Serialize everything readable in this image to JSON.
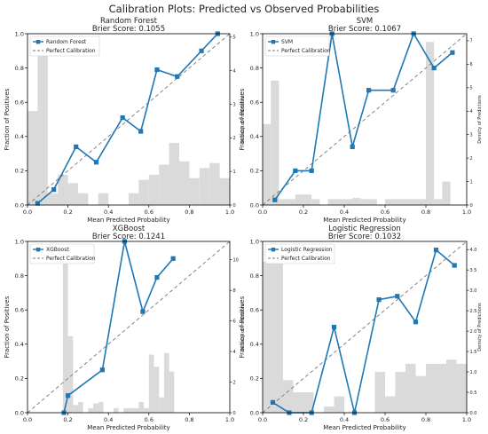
{
  "figure_title": "Calibration Plots: Predicted vs Observed Probabilities",
  "colors": {
    "line": "#1f77b4",
    "hist": "#d3d3d3",
    "perfect": "#777777",
    "axis": "#000000"
  },
  "chart_data": [
    {
      "type": "line",
      "title": "Random Forest",
      "subtitle": "Brier Score: 0.1055",
      "xlabel": "Mean Predicted Probability",
      "ylabel": "Fraction of Positives",
      "y2label": "Density of Predictions",
      "xlim": [
        0,
        1
      ],
      "ylim": [
        0,
        1
      ],
      "y2lim": [
        0,
        5.1
      ],
      "xticks": [
        "0.0",
        "0.2",
        "0.4",
        "0.6",
        "0.8",
        "1.0"
      ],
      "yticks": [
        "0.0",
        "0.2",
        "0.4",
        "0.6",
        "0.8",
        "1.0"
      ],
      "y2ticks": [
        "0",
        "1",
        "2",
        "3",
        "4",
        "5"
      ],
      "legend": [
        "Random Forest",
        "Perfect Calibration"
      ],
      "legend_position": "top-left",
      "series": [
        {
          "name": "Random Forest",
          "x": [
            0.05,
            0.13,
            0.24,
            0.34,
            0.47,
            0.56,
            0.64,
            0.74,
            0.86,
            0.94
          ],
          "y": [
            0.01,
            0.09,
            0.34,
            0.25,
            0.51,
            0.43,
            0.79,
            0.75,
            0.9,
            1.0
          ]
        }
      ],
      "histogram": {
        "bin_width": 0.05,
        "bins": [
          0.0,
          0.05,
          0.1,
          0.15,
          0.2,
          0.25,
          0.3,
          0.35,
          0.4,
          0.45,
          0.5,
          0.55,
          0.6,
          0.65,
          0.7,
          0.75,
          0.8,
          0.85,
          0.9,
          0.95
        ],
        "density": [
          2.8,
          5.0,
          0.35,
          0.9,
          0.65,
          0.35,
          0.0,
          0.35,
          0.0,
          0.0,
          0.35,
          0.75,
          0.9,
          1.2,
          1.85,
          1.3,
          0.8,
          1.1,
          1.25,
          0.8
        ]
      }
    },
    {
      "type": "line",
      "title": "SVM",
      "subtitle": "Brier Score: 0.1067",
      "xlabel": "Mean Predicted Probability",
      "ylabel": "Fraction of Positives",
      "y2label": "Density of Predictions",
      "xlim": [
        0,
        1
      ],
      "ylim": [
        0,
        1
      ],
      "y2lim": [
        0,
        7.3
      ],
      "xticks": [
        "0.0",
        "0.2",
        "0.4",
        "0.6",
        "0.8",
        "1.0"
      ],
      "yticks": [
        "0.0",
        "0.2",
        "0.4",
        "0.6",
        "0.8",
        "1.0"
      ],
      "y2ticks": [
        "0",
        "1",
        "2",
        "3",
        "4",
        "5",
        "6",
        "7"
      ],
      "legend": [
        "SVM",
        "Perfect Calibration"
      ],
      "legend_position": "top-left",
      "series": [
        {
          "name": "SVM",
          "x": [
            0.06,
            0.16,
            0.24,
            0.34,
            0.44,
            0.52,
            0.64,
            0.74,
            0.84,
            0.93
          ],
          "y": [
            0.03,
            0.2,
            0.2,
            1.0,
            0.34,
            0.67,
            0.67,
            1.0,
            0.8,
            0.89
          ]
        }
      ],
      "histogram": {
        "bin_width": 0.04,
        "bins": [
          0.0,
          0.04,
          0.08,
          0.12,
          0.16,
          0.2,
          0.24,
          0.28,
          0.32,
          0.36,
          0.4,
          0.44,
          0.48,
          0.52,
          0.56,
          0.6,
          0.64,
          0.68,
          0.72,
          0.76,
          0.8,
          0.84,
          0.88
        ],
        "density": [
          3.45,
          5.3,
          0.25,
          0.25,
          0.45,
          0.45,
          0.25,
          0.0,
          0.25,
          0.25,
          0.25,
          0.3,
          0.25,
          0.25,
          0.0,
          0.25,
          0.25,
          0.25,
          0.25,
          0.25,
          6.95,
          0.25,
          1.0
        ]
      }
    },
    {
      "type": "line",
      "title": "XGBoost",
      "subtitle": "Brier Score: 0.1241",
      "xlabel": "Mean Predicted Probability",
      "ylabel": "Fraction of Positives",
      "y2label": "Density of Predictions",
      "xlim": [
        0,
        1
      ],
      "ylim": [
        0,
        1
      ],
      "y2lim": [
        0,
        11.2
      ],
      "xticks": [
        "0.0",
        "0.2",
        "0.4",
        "0.6",
        "0.8",
        "1.0"
      ],
      "yticks": [
        "0.0",
        "0.2",
        "0.4",
        "0.6",
        "0.8",
        "1.0"
      ],
      "y2ticks": [
        "0",
        "2",
        "4",
        "6",
        "8",
        "10"
      ],
      "legend": [
        "XGBoost",
        "Perfect Calibration"
      ],
      "legend_position": "top-left",
      "series": [
        {
          "name": "XGBoost",
          "x": [
            0.18,
            0.2,
            0.37,
            0.48,
            0.57,
            0.64,
            0.72
          ],
          "y": [
            0.0,
            0.1,
            0.25,
            1.0,
            0.59,
            0.79,
            0.9
          ]
        }
      ],
      "histogram": {
        "bin_width": 0.025,
        "bins": [
          0.175,
          0.2,
          0.225,
          0.25,
          0.275,
          0.3,
          0.325,
          0.35,
          0.375,
          0.4,
          0.425,
          0.45,
          0.475,
          0.5,
          0.525,
          0.55,
          0.575,
          0.6,
          0.625,
          0.65,
          0.675,
          0.7
        ],
        "density": [
          10.3,
          5.0,
          0.5,
          0.7,
          0.0,
          0.3,
          0.6,
          0.7,
          0.0,
          0.0,
          0.3,
          0.0,
          0.3,
          0.3,
          0.3,
          0.7,
          0.3,
          3.8,
          3.0,
          1.0,
          3.9,
          2.7
        ]
      }
    },
    {
      "type": "line",
      "title": "Logistic Regression",
      "subtitle": "Brier Score: 0.1032",
      "xlabel": "Mean Predicted Probability",
      "ylabel": "Fraction of Positives",
      "y2label": "Density of Predictions",
      "xlim": [
        0,
        1
      ],
      "ylim": [
        0,
        1
      ],
      "y2lim": [
        0,
        4.2
      ],
      "xticks": [
        "0.0",
        "0.2",
        "0.4",
        "0.6",
        "0.8",
        "1.0"
      ],
      "yticks": [
        "0.0",
        "0.2",
        "0.4",
        "0.6",
        "0.8",
        "1.0"
      ],
      "y2ticks": [
        "0.0",
        "0.5",
        "1.0",
        "1.5",
        "2.0",
        "2.5",
        "3.0",
        "3.5",
        "4.0"
      ],
      "legend": [
        "Logistic Regression",
        "Perfect Calibration"
      ],
      "legend_position": "top-left",
      "series": [
        {
          "name": "Logistic Regression",
          "x": [
            0.05,
            0.13,
            0.24,
            0.35,
            0.45,
            0.57,
            0.66,
            0.75,
            0.85,
            0.94
          ],
          "y": [
            0.06,
            0.0,
            0.0,
            0.5,
            0.0,
            0.66,
            0.68,
            0.53,
            0.95,
            0.86
          ]
        }
      ],
      "histogram": {
        "bin_width": 0.05,
        "bins": [
          0.0,
          0.05,
          0.1,
          0.15,
          0.2,
          0.25,
          0.3,
          0.35,
          0.4,
          0.45,
          0.5,
          0.55,
          0.6,
          0.65,
          0.7,
          0.75,
          0.8,
          0.85,
          0.9,
          0.95
        ],
        "density": [
          3.7,
          3.9,
          0.8,
          0.5,
          0.5,
          0.0,
          0.15,
          0.4,
          0.0,
          0.0,
          0.0,
          1.0,
          0.4,
          1.0,
          1.2,
          0.9,
          1.2,
          1.2,
          1.3,
          1.2
        ]
      }
    }
  ]
}
